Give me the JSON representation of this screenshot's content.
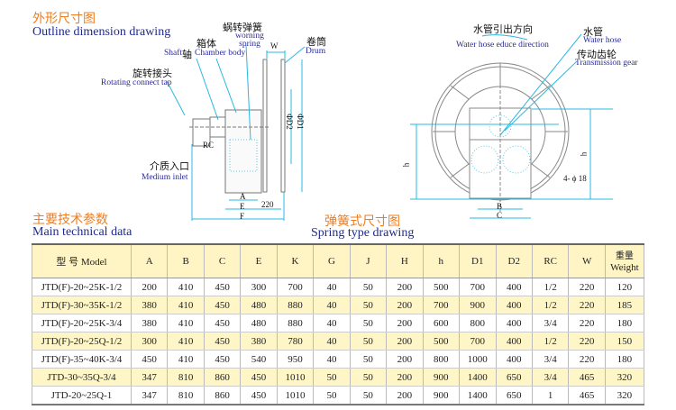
{
  "outline": {
    "title_cn": "外形尺寸图",
    "title_en": "Outline dimension drawing",
    "labels": {
      "worming_spring_cn": "蜗转弹簧",
      "worming_spring_en": "worning spring",
      "chamber_cn": "箱体",
      "shaft_en": "Shaft",
      "shaft_cn": "轴",
      "chamber_en": "Chamber body",
      "drum_cn": "卷筒",
      "drum_en": "Drum",
      "rotating_cn": "旋转接头",
      "rotating_en": "Rotating connect tap",
      "inlet_cn": "介质入口",
      "inlet_en": "Medium inlet"
    },
    "dims": {
      "W": "W",
      "D2": "ΦD2",
      "D1": "ΦD1",
      "RC": "RC",
      "A": "A",
      "E": "E",
      "F": "F",
      "d220": "220"
    }
  },
  "spring": {
    "title_cn": "弹簧式尺寸图",
    "title_en": "Spring type drawing",
    "labels": {
      "educe_cn": "水管引出方向",
      "educe_en": "Water hose educe direction",
      "hose_cn": "水管",
      "hose_en": "Water hose",
      "gear_cn": "传动齿轮",
      "gear_en": "Transmission gear"
    },
    "dims": {
      "h_left": "h",
      "h_right": "h",
      "holes": "4- ϕ 18",
      "B": "B",
      "C": "C"
    }
  },
  "tech": {
    "title_cn": "主要技术参数",
    "title_en": "Main technical data",
    "headers": [
      "型 号  Model",
      "A",
      "B",
      "C",
      "E",
      "K",
      "G",
      "J",
      "H",
      "h",
      "D1",
      "D2",
      "RC",
      "W"
    ],
    "weight_cn": "重量",
    "weight_en": "Weight",
    "rows": [
      [
        "JTD(F)-20~25K-1/2",
        "200",
        "410",
        "450",
        "300",
        "700",
        "40",
        "50",
        "200",
        "500",
        "700",
        "400",
        "1/2",
        "220",
        "120"
      ],
      [
        "JTD(F)-30~35K-1/2",
        "380",
        "410",
        "450",
        "480",
        "880",
        "40",
        "50",
        "200",
        "700",
        "900",
        "400",
        "1/2",
        "220",
        "185"
      ],
      [
        "JTD(F)-20~25K-3/4",
        "380",
        "410",
        "450",
        "480",
        "880",
        "40",
        "50",
        "200",
        "600",
        "800",
        "400",
        "3/4",
        "220",
        "180"
      ],
      [
        "JTD(F)-20~25Q-1/2",
        "300",
        "410",
        "450",
        "380",
        "780",
        "40",
        "50",
        "200",
        "500",
        "700",
        "400",
        "1/2",
        "220",
        "150"
      ],
      [
        "JTD(F)-35~40K-3/4",
        "450",
        "410",
        "450",
        "540",
        "950",
        "40",
        "50",
        "200",
        "800",
        "1000",
        "400",
        "3/4",
        "220",
        "180"
      ],
      [
        "JTD-30~35Q-3/4",
        "347",
        "810",
        "860",
        "450",
        "1010",
        "50",
        "50",
        "200",
        "900",
        "1400",
        "650",
        "3/4",
        "465",
        "320"
      ],
      [
        "JTD-20~25Q-1",
        "347",
        "810",
        "860",
        "450",
        "1010",
        "50",
        "50",
        "200",
        "900",
        "1400",
        "650",
        "1",
        "465",
        "320"
      ]
    ]
  },
  "colors": {
    "title_orange": "#ef7d1f",
    "title_navy": "#1f2a8a",
    "leader_cyan": "#29b8e0",
    "row_highlight": "#fff6c8"
  }
}
